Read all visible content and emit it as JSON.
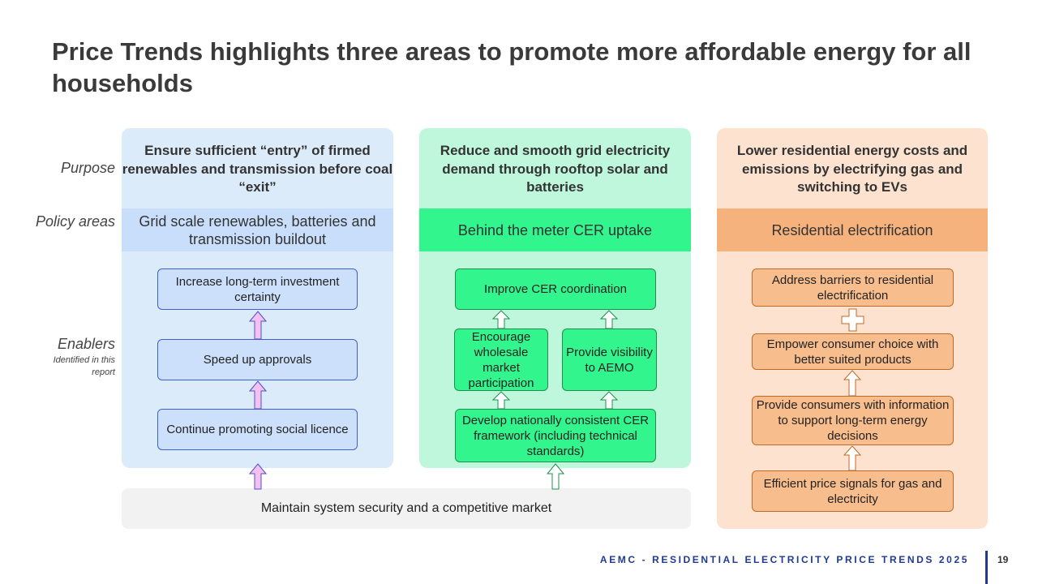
{
  "title": "Price Trends highlights three areas to promote more affordable energy for all households",
  "labels": {
    "purpose": "Purpose",
    "policy_areas": "Policy areas",
    "enablers": "Enablers",
    "enablers_sub": "Identified in this report"
  },
  "columns": [
    {
      "purpose": "Ensure sufficient “entry” of firmed renewables and transmission before coal “exit”",
      "policy_area": "Grid scale renewables, batteries and transmission buildout",
      "enablers": [
        "Increase long-term investment certainty",
        "Speed up approvals",
        "Continue promoting social licence"
      ]
    },
    {
      "purpose": "Reduce and smooth grid electricity demand through rooftop solar and batteries",
      "policy_area": "Behind the meter CER uptake",
      "enablers": [
        "Improve CER coordination",
        "Encourage wholesale market participation",
        "Provide visibility to AEMO",
        "Develop nationally consistent CER framework (including technical standards)"
      ]
    },
    {
      "purpose": "Lower residential energy costs and emissions by electrifying gas and switching to EVs",
      "policy_area": "Residential electrification",
      "enablers": [
        "Address barriers to residential electrification",
        "Empower consumer choice with better suited products",
        "Provide consumers with information to support long-term energy decisions",
        "Efficient price signals for gas and electricity"
      ]
    }
  ],
  "foundation": "Maintain system security and a competitive market",
  "footer": {
    "text": "AEMC - RESIDENTIAL ELECTRICITY PRICE TRENDS 2025",
    "page": "19"
  },
  "colors": {
    "col1_bg": "#dcebfa",
    "col2_bg": "#bff7dc",
    "col3_bg": "#fde3cf",
    "blue_accent": "#3f5fd0",
    "green_accent": "#33f58e",
    "orange_accent": "#f6b27d",
    "footer_blue": "#1f3a93"
  }
}
